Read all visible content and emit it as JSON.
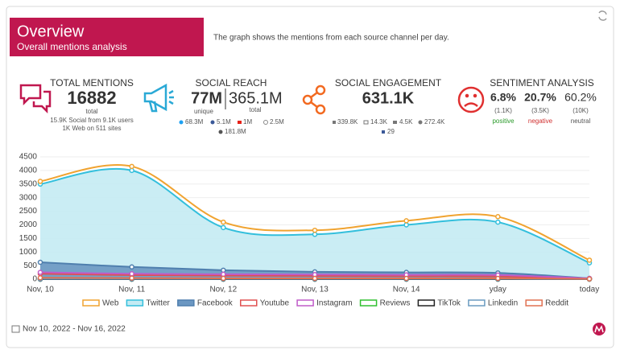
{
  "header": {
    "title": "Overview",
    "subtitle": "Overall mentions analysis",
    "description": "The graph shows the mentions from each source channel per day."
  },
  "kpis": {
    "total_mentions": {
      "label": "TOTAL MENTIONS",
      "value": "16882",
      "unit": "total",
      "line1": "15.9K Social from 9.1K users",
      "line2": "1K Web on 511 sites"
    },
    "social_reach": {
      "label": "SOCIAL REACH",
      "unique": "77M",
      "unique_label": "unique",
      "total": "365.1M",
      "total_label": "total",
      "twitter": "68.3M",
      "facebook": "5.1M",
      "youtube": "1M",
      "instagram": "2.5M",
      "other": "181.8M"
    },
    "social_engagement": {
      "label": "SOCIAL ENGAGEMENT",
      "value": "631.1K",
      "likes": "339.8K",
      "retweets": "14.3K",
      "comments": "4.5K",
      "reactions": "272.4K",
      "facebook": "29"
    },
    "sentiment": {
      "label": "SENTIMENT ANALYSIS",
      "positive": {
        "percent": "6.8%",
        "count": "(1.1K)",
        "label": "positive"
      },
      "negative": {
        "percent": "20.7%",
        "count": "(3.5K)",
        "label": "negative"
      },
      "neutral": {
        "percent": "60.2%",
        "count": "(10K)",
        "label": "neutral"
      }
    }
  },
  "chart_data": {
    "type": "area",
    "categories": [
      "Nov, 10",
      "Nov, 11",
      "Nov, 12",
      "Nov, 13",
      "Nov, 14",
      "yday",
      "today"
    ],
    "ylim": [
      0,
      4500
    ],
    "yticks": [
      0,
      500,
      1000,
      1500,
      2000,
      2500,
      3000,
      3500,
      4000,
      4500
    ],
    "grid": true,
    "series": [
      {
        "name": "Web",
        "color": "#f0a330",
        "values": [
          3600,
          4150,
          2100,
          1800,
          2150,
          2300,
          700
        ]
      },
      {
        "name": "Twitter",
        "color": "#33bfdc",
        "fill": "#c4ebf3",
        "values": [
          3500,
          4000,
          1900,
          1650,
          2000,
          2100,
          600
        ]
      },
      {
        "name": "Facebook",
        "color": "#4f7fae",
        "fill": "#6b97c2",
        "values": [
          620,
          450,
          330,
          270,
          250,
          230,
          30
        ]
      },
      {
        "name": "Youtube",
        "color": "#e05050",
        "values": [
          200,
          150,
          130,
          120,
          110,
          100,
          20
        ]
      },
      {
        "name": "Instagram",
        "color": "#c05cc8",
        "values": [
          250,
          200,
          180,
          170,
          160,
          150,
          30
        ]
      },
      {
        "name": "Reviews",
        "color": "#30c030",
        "values": [
          0,
          0,
          0,
          0,
          0,
          0,
          0
        ]
      },
      {
        "name": "TikTok",
        "color": "#222222",
        "values": [
          0,
          0,
          0,
          0,
          0,
          0,
          0
        ]
      },
      {
        "name": "Linkedin",
        "color": "#6a9bc0",
        "values": [
          10,
          10,
          10,
          10,
          10,
          10,
          5
        ]
      },
      {
        "name": "Reddit",
        "color": "#e07050",
        "values": [
          50,
          40,
          30,
          30,
          30,
          30,
          10
        ]
      }
    ]
  },
  "footer": {
    "date_range": "Nov 10, 2022 - Nov 16, 2022"
  }
}
